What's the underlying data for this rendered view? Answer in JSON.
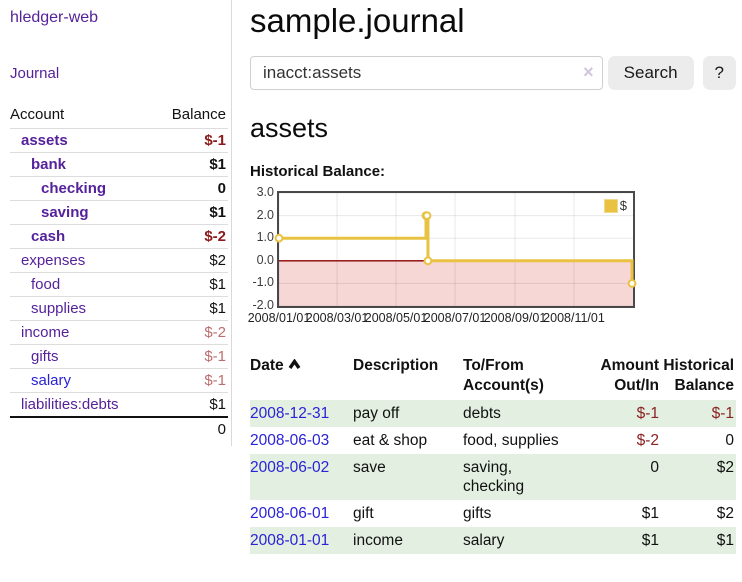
{
  "colors": {
    "link_purple": "#55229b",
    "link_blue": "#2a22d6",
    "negative_strong": "#8b1a1a",
    "negative_muted": "#bc6e6e",
    "negative_table": "#8b2222",
    "row_green": "#e3f0e1",
    "series_gold": "#e8c240"
  },
  "sidebar": {
    "brand": "hledger-web",
    "journal_link": "Journal",
    "accounts_table": {
      "headers": {
        "account": "Account",
        "balance": "Balance"
      },
      "accounts": [
        {
          "label": "assets",
          "depth": 0,
          "bold": true,
          "balance": "$-1",
          "negative": "strong",
          "link": "purple"
        },
        {
          "label": "bank",
          "depth": 1,
          "bold": true,
          "balance": "$1",
          "negative": "none",
          "link": "purple"
        },
        {
          "label": "checking",
          "depth": 2,
          "bold": true,
          "balance": "0",
          "negative": "none",
          "link": "purple"
        },
        {
          "label": "saving",
          "depth": 2,
          "bold": true,
          "balance": "$1",
          "negative": "none",
          "link": "purple"
        },
        {
          "label": "cash",
          "depth": 1,
          "bold": true,
          "balance": "$-2",
          "negative": "strong",
          "link": "purple"
        },
        {
          "label": "expenses",
          "depth": 0,
          "bold": false,
          "balance": "$2",
          "negative": "none",
          "link": "purple"
        },
        {
          "label": "food",
          "depth": 1,
          "bold": false,
          "balance": "$1",
          "negative": "none",
          "link": "purple"
        },
        {
          "label": "supplies",
          "depth": 1,
          "bold": false,
          "balance": "$1",
          "negative": "none",
          "link": "purple"
        },
        {
          "label": "income",
          "depth": 0,
          "bold": false,
          "balance": "$-2",
          "negative": "muted",
          "link": "purple"
        },
        {
          "label": "gifts",
          "depth": 1,
          "bold": false,
          "balance": "$-1",
          "negative": "muted",
          "link": "purple"
        },
        {
          "label": "salary",
          "depth": 1,
          "bold": false,
          "balance": "$-1",
          "negative": "muted",
          "link": "blue"
        },
        {
          "label": "liabilities:debts",
          "depth": 0,
          "bold": false,
          "balance": "$1",
          "negative": "none",
          "link": "purple"
        }
      ],
      "total": "0"
    }
  },
  "header": {
    "title": "sample.journal"
  },
  "search": {
    "query": "inacct:assets",
    "clear_icon": "×",
    "search_label": "Search",
    "help_label": "?"
  },
  "main": {
    "account_heading": "assets",
    "chart_label": "Historical Balance:",
    "table": {
      "headers": [
        "Date",
        "Description",
        "To/From Account(s)",
        "Amount Out/In",
        "Historical Balance"
      ],
      "rows": [
        {
          "date": "2008-12-31",
          "description": "pay off",
          "accounts": "debts",
          "amount": "$-1",
          "amount_negative": true,
          "balance": "$-1",
          "balance_negative": true
        },
        {
          "date": "2008-06-03",
          "description": "eat & shop",
          "accounts": "food, supplies",
          "amount": "$-2",
          "amount_negative": true,
          "balance": "0",
          "balance_negative": false
        },
        {
          "date": "2008-06-02",
          "description": "save",
          "accounts": "saving, checking",
          "amount": "0",
          "amount_negative": false,
          "balance": "$2",
          "balance_negative": false
        },
        {
          "date": "2008-06-01",
          "description": "gift",
          "accounts": "gifts",
          "amount": "$1",
          "amount_negative": false,
          "balance": "$2",
          "balance_negative": false
        },
        {
          "date": "2008-01-01",
          "description": "income",
          "accounts": "salary",
          "amount": "$1",
          "amount_negative": false,
          "balance": "$1",
          "balance_negative": false
        }
      ]
    }
  },
  "chart_data": {
    "type": "line",
    "title": "Historical Balance:",
    "series": [
      {
        "name": "$",
        "color": "#e8c240",
        "steps": true,
        "points": [
          [
            "2008-01-01",
            1
          ],
          [
            "2008-06-01",
            2
          ],
          [
            "2008-06-02",
            2
          ],
          [
            "2008-06-03",
            0
          ],
          [
            "2008-12-31",
            -1
          ]
        ]
      }
    ],
    "xlim": [
      "2008-01-01",
      "2009-01-01"
    ],
    "ylim": [
      -2,
      3
    ],
    "ytick_values": [
      3,
      2,
      1,
      0,
      -1,
      -2
    ],
    "yticks": [
      "3.0",
      "2.0",
      "1.0",
      "0.0",
      "-1.0",
      "-2.0"
    ],
    "xticks": [
      {
        "label": "2008/01/01",
        "date": "2008-01-01"
      },
      {
        "label": "2008/03/01",
        "date": "2008-03-01"
      },
      {
        "label": "2008/05/01",
        "date": "2008-05-01"
      },
      {
        "label": "2008/07/01",
        "date": "2008-07-01"
      },
      {
        "label": "2008/09/01",
        "date": "2008-09-01"
      },
      {
        "label": "2008/11/01",
        "date": "2008-11-01"
      }
    ],
    "grid": true,
    "legend": {
      "label": "$",
      "position": "top-right"
    },
    "markings": {
      "negative_region_color": "#f7d6d6",
      "zero_line_color": "#8b0000"
    }
  }
}
